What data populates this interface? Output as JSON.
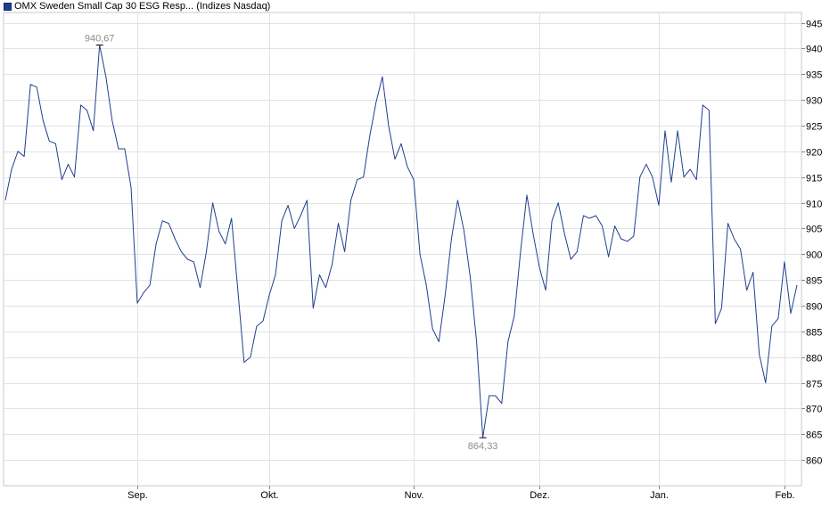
{
  "legend": {
    "label": "OMX Sweden Small Cap 30 ESG Resp... (Indizes Nasdaq)",
    "color": "#1f3f8f"
  },
  "chart_data": {
    "type": "line",
    "title": "",
    "xlabel": "",
    "ylabel": "",
    "ylim": [
      855,
      947
    ],
    "yticks": [
      860,
      865,
      870,
      875,
      880,
      885,
      890,
      895,
      900,
      905,
      910,
      915,
      920,
      925,
      930,
      935,
      940,
      945
    ],
    "xticks": [
      {
        "label": "Sep.",
        "index": 21
      },
      {
        "label": "Okt.",
        "index": 42
      },
      {
        "label": "Nov.",
        "index": 65
      },
      {
        "label": "Dez.",
        "index": 85
      },
      {
        "label": "Jan.",
        "index": 104
      },
      {
        "label": "Feb.",
        "index": 124
      }
    ],
    "grid": true,
    "line_color": "#1f3f8f",
    "series": [
      {
        "values": [
          910.5,
          916.5,
          920.0,
          919.0,
          933.0,
          932.5,
          926.0,
          922.0,
          921.5,
          914.5,
          917.5,
          915.0,
          929.0,
          928.0,
          924.0,
          940.67,
          934.5,
          926.0,
          920.5,
          920.5,
          913.0,
          890.5,
          892.5,
          894.0,
          902.0,
          906.5,
          906.0,
          903.0,
          900.5,
          899.0,
          898.5,
          893.5,
          900.5,
          910.0,
          904.5,
          902.0,
          907.0,
          893.0,
          879.0,
          880.0,
          886.0,
          887.0,
          892.0,
          896.0,
          906.5,
          909.5,
          905.0,
          907.5,
          910.5,
          889.5,
          896.0,
          893.5,
          898.0,
          906.0,
          900.5,
          910.5,
          914.5,
          915.0,
          923.0,
          929.5,
          934.5,
          925.0,
          918.5,
          921.5,
          917.0,
          914.5,
          900.0,
          894.0,
          885.5,
          883.0,
          892.0,
          903.0,
          910.5,
          904.5,
          895.5,
          883.0,
          864.33,
          872.5,
          872.5,
          871.0,
          883.0,
          888.0,
          900.5,
          911.5,
          904.0,
          897.5,
          893.0,
          906.5,
          910.0,
          904.0,
          899.0,
          900.5,
          907.5,
          907.0,
          907.5,
          905.5,
          899.5,
          905.5,
          903.0,
          902.5,
          903.5,
          915.0,
          917.5,
          915.0,
          909.5,
          924.0,
          914.0,
          924.0,
          915.0,
          916.5,
          914.5,
          929.0,
          928.0,
          886.5,
          889.5,
          906.0,
          903.0,
          901.0,
          893.0,
          896.5,
          880.5,
          875.0,
          886.0,
          887.5,
          898.5,
          888.5,
          894.0
        ]
      }
    ],
    "annotations": [
      {
        "text": "940,67",
        "index": 15,
        "value": 940.67,
        "position": "above"
      },
      {
        "text": "864,33",
        "index": 76,
        "value": 864.33,
        "position": "below"
      }
    ]
  }
}
